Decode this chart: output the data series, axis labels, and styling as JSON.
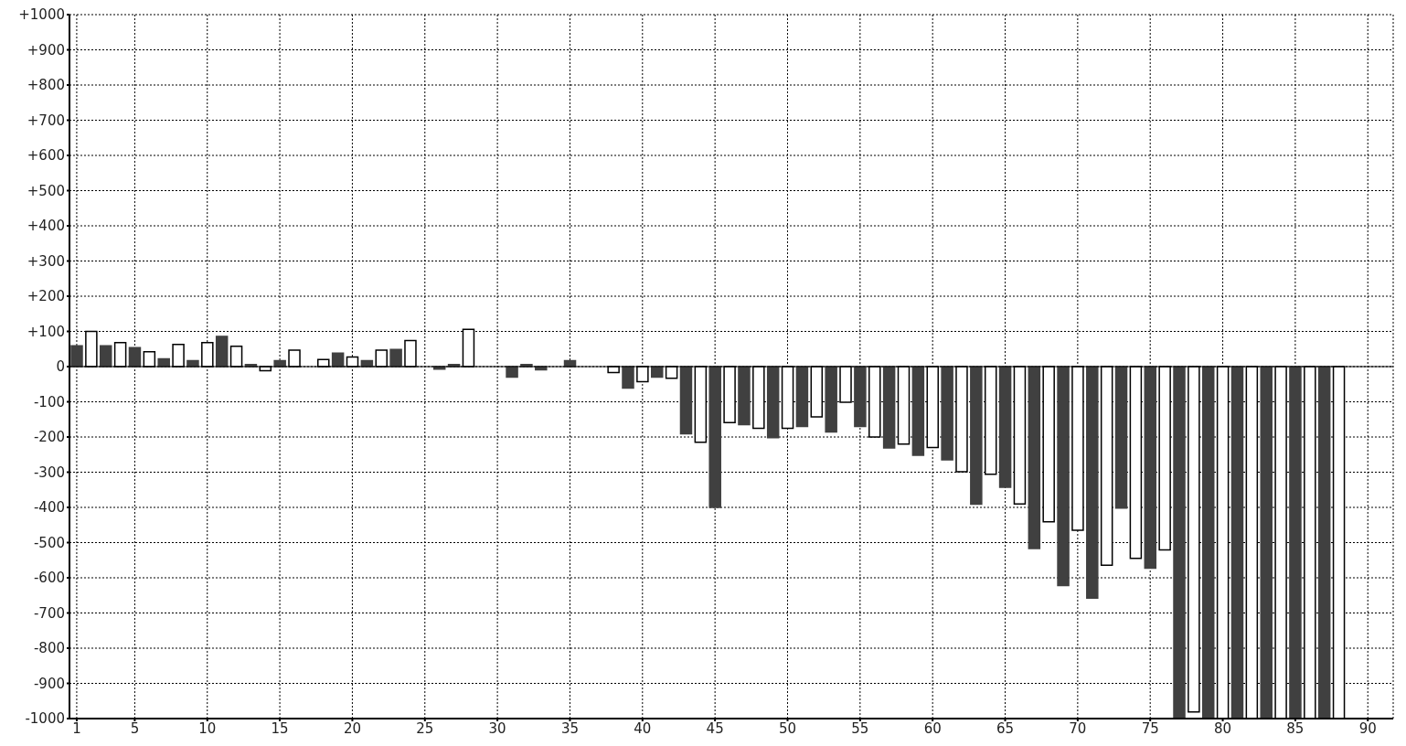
{
  "chart_data": {
    "type": "bar",
    "x": [
      1,
      2,
      3,
      4,
      5,
      6,
      7,
      8,
      9,
      10,
      11,
      12,
      13,
      14,
      15,
      16,
      17,
      18,
      19,
      20,
      21,
      22,
      23,
      24,
      25,
      26,
      27,
      28,
      29,
      30,
      31,
      32,
      33,
      34,
      35,
      36,
      37,
      38,
      39,
      40,
      41,
      42,
      43,
      44,
      45,
      46,
      47,
      48,
      49,
      50,
      51,
      52,
      53,
      54,
      55,
      56,
      57,
      58,
      59,
      60,
      61,
      62,
      63,
      64,
      65,
      66,
      67,
      68,
      69,
      70,
      71,
      72,
      73,
      74,
      75,
      76,
      77,
      78,
      79,
      80,
      81,
      82,
      83,
      84,
      85,
      86,
      87,
      88
    ],
    "values": [
      59,
      100,
      59,
      68,
      54,
      42,
      22,
      63,
      17,
      68,
      86,
      58,
      6,
      -12,
      17,
      47,
      null,
      20,
      38,
      27,
      17,
      47,
      49,
      74,
      null,
      -7,
      6,
      106,
      null,
      null,
      -30,
      6,
      -9,
      null,
      17,
      null,
      null,
      -17,
      -61,
      -43,
      -30,
      -33,
      -191,
      -215,
      -400,
      -159,
      -165,
      -175,
      -202,
      -175,
      -170,
      -143,
      -186,
      -101,
      -170,
      -200,
      -231,
      -220,
      -252,
      -230,
      -265,
      -299,
      -391,
      -306,
      -343,
      -390,
      -517,
      -441,
      -622,
      -465,
      -658,
      -564,
      -402,
      -545,
      -573,
      -521,
      -1000,
      -981,
      -1000,
      -1000,
      -1000,
      -1000,
      -1000,
      -1000,
      -1000,
      -1000,
      -1000,
      -1000
    ],
    "colors": [
      "#404040",
      "#ffffff",
      "#404040",
      "#ffffff",
      "#404040",
      "#ffffff",
      "#404040",
      "#ffffff",
      "#404040",
      "#ffffff",
      "#404040",
      "#ffffff",
      "#404040",
      "#ffffff",
      "#404040",
      "#ffffff",
      "#404040",
      "#ffffff",
      "#404040",
      "#ffffff",
      "#404040",
      "#ffffff",
      "#404040",
      "#ffffff",
      "#404040",
      "#404040",
      "#404040",
      "#ffffff",
      "#404040",
      "#ffffff",
      "#404040",
      "#404040",
      "#404040",
      "#ffffff",
      "#404040",
      "#ffffff",
      "#404040",
      "#ffffff",
      "#404040",
      "#ffffff",
      "#404040",
      "#ffffff",
      "#404040",
      "#ffffff",
      "#404040",
      "#ffffff",
      "#404040",
      "#ffffff",
      "#404040",
      "#ffffff",
      "#404040",
      "#ffffff",
      "#404040",
      "#ffffff",
      "#404040",
      "#ffffff",
      "#404040",
      "#ffffff",
      "#404040",
      "#ffffff",
      "#404040",
      "#ffffff",
      "#404040",
      "#ffffff",
      "#404040",
      "#ffffff",
      "#404040",
      "#ffffff",
      "#404040",
      "#ffffff",
      "#404040",
      "#ffffff",
      "#404040",
      "#ffffff",
      "#404040",
      "#ffffff",
      "#404040",
      "#ffffff",
      "#404040",
      "#ffffff",
      "#404040",
      "#ffffff",
      "#404040",
      "#ffffff",
      "#404040",
      "#ffffff",
      "#404040",
      "#ffffff"
    ],
    "xlim": [
      0.5,
      91.75
    ],
    "xticks": [
      1,
      5,
      10,
      15,
      20,
      25,
      30,
      35,
      40,
      45,
      50,
      55,
      60,
      65,
      70,
      75,
      80,
      85,
      90
    ],
    "ylim": [
      -1000,
      1000
    ],
    "yticks": [
      {
        "value": -1000,
        "label": "-1000"
      },
      {
        "value": -900,
        "label": "-900"
      },
      {
        "value": -800,
        "label": "-800"
      },
      {
        "value": -700,
        "label": "-700"
      },
      {
        "value": -600,
        "label": "-600"
      },
      {
        "value": -500,
        "label": "-500"
      },
      {
        "value": -400,
        "label": "-400"
      },
      {
        "value": -300,
        "label": "-300"
      },
      {
        "value": -200,
        "label": "-200"
      },
      {
        "value": -100,
        "label": "-100"
      },
      0,
      {
        "value": 100,
        "label": "+100"
      },
      {
        "value": 200,
        "label": "+200"
      },
      {
        "value": 300,
        "label": "+300"
      },
      {
        "value": 400,
        "label": "+400"
      },
      {
        "value": 500,
        "label": "+500"
      },
      {
        "value": 600,
        "label": "+600"
      },
      {
        "value": 700,
        "label": "+700"
      },
      {
        "value": 800,
        "label": "+800"
      },
      {
        "value": 900,
        "label": "+900"
      },
      {
        "value": 1000,
        "label": "+1000"
      }
    ],
    "ref_lines": [
      {
        "axis": "y",
        "value": 0
      }
    ],
    "grid": true
  }
}
